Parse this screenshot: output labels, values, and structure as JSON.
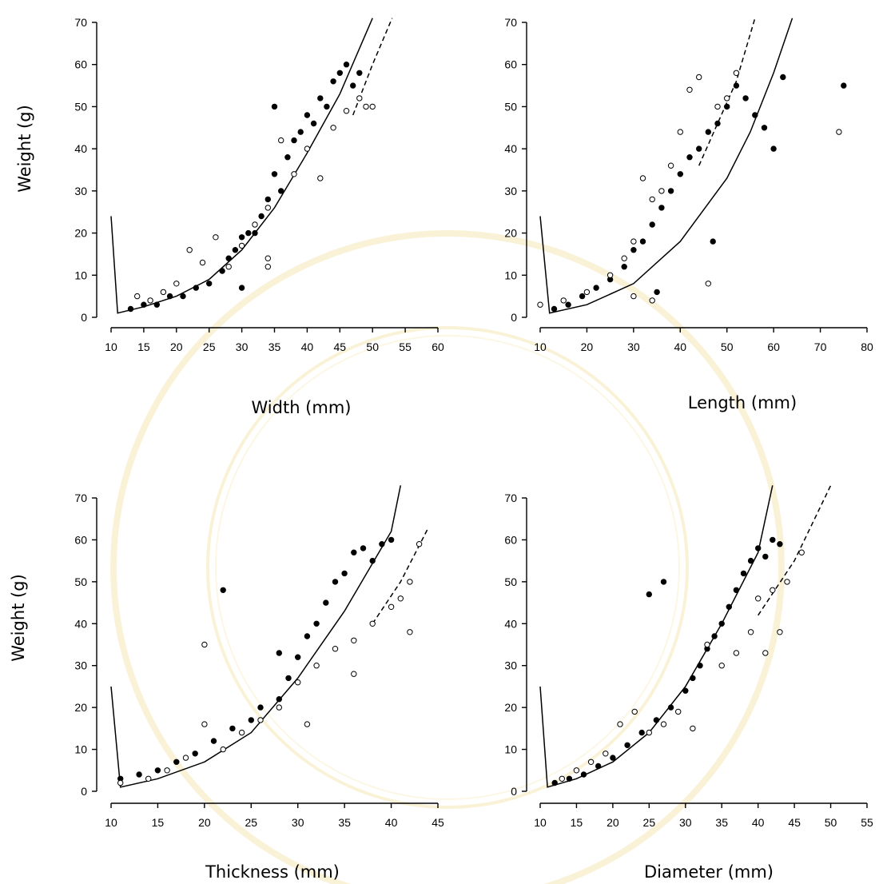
{
  "colors": {
    "axis": "#000000",
    "filled_point": "#000000",
    "open_point_fill": "#ffffff",
    "watermark": "#e9c64b"
  },
  "chart_data": [
    {
      "type": "scatter",
      "xlabel": "Width (mm)",
      "ylabel": "Weight (g)",
      "xlim": [
        10,
        60
      ],
      "ylim": [
        0,
        70
      ],
      "xticks": [
        "10",
        "15",
        "20",
        "25",
        "30",
        "35",
        "40",
        "45",
        "50",
        "55",
        "60"
      ],
      "yticks": [
        "0",
        "10",
        "20",
        "30",
        "40",
        "50",
        "60",
        "70"
      ],
      "series": [
        {
          "marker": "filled",
          "points": [
            [
              13,
              2
            ],
            [
              15,
              3
            ],
            [
              17,
              3
            ],
            [
              19,
              5
            ],
            [
              21,
              5
            ],
            [
              23,
              7
            ],
            [
              25,
              8
            ],
            [
              27,
              11
            ],
            [
              28,
              14
            ],
            [
              29,
              16
            ],
            [
              30,
              19
            ],
            [
              31,
              20
            ],
            [
              32,
              20
            ],
            [
              33,
              24
            ],
            [
              34,
              28
            ],
            [
              35,
              34
            ],
            [
              36,
              30
            ],
            [
              37,
              38
            ],
            [
              38,
              42
            ],
            [
              39,
              44
            ],
            [
              40,
              48
            ],
            [
              41,
              46
            ],
            [
              42,
              52
            ],
            [
              43,
              50
            ],
            [
              44,
              56
            ],
            [
              45,
              58
            ],
            [
              46,
              60
            ],
            [
              47,
              55
            ],
            [
              48,
              58
            ],
            [
              35,
              50
            ],
            [
              30,
              7
            ]
          ]
        },
        {
          "marker": "open",
          "points": [
            [
              14,
              5
            ],
            [
              16,
              4
            ],
            [
              18,
              6
            ],
            [
              20,
              8
            ],
            [
              22,
              16
            ],
            [
              24,
              13
            ],
            [
              26,
              19
            ],
            [
              28,
              12
            ],
            [
              30,
              17
            ],
            [
              32,
              22
            ],
            [
              34,
              26
            ],
            [
              36,
              42
            ],
            [
              38,
              34
            ],
            [
              40,
              40
            ],
            [
              42,
              33
            ],
            [
              44,
              45
            ],
            [
              46,
              49
            ],
            [
              48,
              52
            ],
            [
              49,
              50
            ],
            [
              50,
              50
            ],
            [
              34,
              14
            ],
            [
              34,
              12
            ]
          ]
        }
      ],
      "fit_lines": [
        {
          "style": "solid",
          "points": [
            [
              10,
              24
            ],
            [
              11,
              1
            ],
            [
              15,
              2.5
            ],
            [
              20,
              5
            ],
            [
              25,
              9
            ],
            [
              30,
              16
            ],
            [
              35,
              26
            ],
            [
              40,
              39
            ],
            [
              45,
              53
            ],
            [
              50,
              71
            ]
          ]
        },
        {
          "style": "dashed",
          "points": [
            [
              47,
              48
            ],
            [
              50,
              60
            ],
            [
              53,
              71
            ]
          ]
        }
      ]
    },
    {
      "type": "scatter",
      "xlabel": "Length (mm)",
      "ylabel": "",
      "xlim": [
        10,
        80
      ],
      "ylim": [
        0,
        70
      ],
      "xticks": [
        "10",
        "20",
        "30",
        "40",
        "50",
        "60",
        "70",
        "80"
      ],
      "yticks": [
        "0",
        "10",
        "20",
        "30",
        "40",
        "50",
        "60",
        "70"
      ],
      "series": [
        {
          "marker": "filled",
          "points": [
            [
              13,
              2
            ],
            [
              16,
              3
            ],
            [
              19,
              5
            ],
            [
              22,
              7
            ],
            [
              25,
              9
            ],
            [
              28,
              12
            ],
            [
              30,
              16
            ],
            [
              32,
              18
            ],
            [
              34,
              22
            ],
            [
              36,
              26
            ],
            [
              38,
              30
            ],
            [
              40,
              34
            ],
            [
              42,
              38
            ],
            [
              44,
              40
            ],
            [
              46,
              44
            ],
            [
              48,
              46
            ],
            [
              50,
              50
            ],
            [
              52,
              55
            ],
            [
              54,
              52
            ],
            [
              56,
              48
            ],
            [
              58,
              45
            ],
            [
              60,
              40
            ],
            [
              62,
              57
            ],
            [
              47,
              18
            ],
            [
              35,
              6
            ],
            [
              75,
              55
            ]
          ]
        },
        {
          "marker": "open",
          "points": [
            [
              10,
              3
            ],
            [
              15,
              4
            ],
            [
              20,
              6
            ],
            [
              25,
              10
            ],
            [
              28,
              14
            ],
            [
              30,
              18
            ],
            [
              32,
              33
            ],
            [
              34,
              28
            ],
            [
              36,
              30
            ],
            [
              38,
              36
            ],
            [
              40,
              44
            ],
            [
              42,
              54
            ],
            [
              44,
              57
            ],
            [
              46,
              8
            ],
            [
              48,
              50
            ],
            [
              50,
              52
            ],
            [
              52,
              58
            ],
            [
              34,
              4
            ],
            [
              74,
              44
            ],
            [
              30,
              5
            ]
          ]
        }
      ],
      "fit_lines": [
        {
          "style": "solid",
          "points": [
            [
              10,
              24
            ],
            [
              12,
              1
            ],
            [
              20,
              3
            ],
            [
              30,
              8
            ],
            [
              40,
              18
            ],
            [
              50,
              33
            ],
            [
              55,
              44
            ],
            [
              60,
              58
            ],
            [
              64,
              71
            ]
          ]
        },
        {
          "style": "dashed",
          "points": [
            [
              44,
              36
            ],
            [
              48,
              46
            ],
            [
              52,
              56
            ],
            [
              56,
              71
            ]
          ]
        }
      ]
    },
    {
      "type": "scatter",
      "xlabel": "Thickness (mm)",
      "ylabel": "Weight (g)",
      "xlim": [
        10,
        45
      ],
      "ylim": [
        0,
        70
      ],
      "xticks": [
        "10",
        "15",
        "20",
        "25",
        "30",
        "35",
        "40",
        "45"
      ],
      "yticks": [
        "0",
        "10",
        "20",
        "30",
        "40",
        "50",
        "60",
        "70"
      ],
      "series": [
        {
          "marker": "filled",
          "points": [
            [
              11,
              3
            ],
            [
              13,
              4
            ],
            [
              15,
              5
            ],
            [
              17,
              7
            ],
            [
              19,
              9
            ],
            [
              21,
              12
            ],
            [
              23,
              15
            ],
            [
              25,
              17
            ],
            [
              26,
              20
            ],
            [
              28,
              22
            ],
            [
              29,
              27
            ],
            [
              30,
              32
            ],
            [
              31,
              37
            ],
            [
              32,
              40
            ],
            [
              33,
              45
            ],
            [
              34,
              50
            ],
            [
              35,
              52
            ],
            [
              36,
              57
            ],
            [
              37,
              58
            ],
            [
              38,
              55
            ],
            [
              39,
              59
            ],
            [
              40,
              60
            ],
            [
              22,
              48
            ],
            [
              28,
              33
            ]
          ]
        },
        {
          "marker": "open",
          "points": [
            [
              11,
              2
            ],
            [
              14,
              3
            ],
            [
              16,
              5
            ],
            [
              18,
              8
            ],
            [
              20,
              16
            ],
            [
              20,
              35
            ],
            [
              22,
              10
            ],
            [
              24,
              14
            ],
            [
              26,
              17
            ],
            [
              28,
              20
            ],
            [
              30,
              26
            ],
            [
              32,
              30
            ],
            [
              34,
              34
            ],
            [
              36,
              36
            ],
            [
              38,
              40
            ],
            [
              40,
              44
            ],
            [
              41,
              46
            ],
            [
              42,
              50
            ],
            [
              43,
              59
            ],
            [
              42,
              38
            ],
            [
              36,
              28
            ],
            [
              31,
              16
            ]
          ]
        }
      ],
      "fit_lines": [
        {
          "style": "solid",
          "points": [
            [
              10,
              25
            ],
            [
              11,
              1
            ],
            [
              15,
              3
            ],
            [
              20,
              7
            ],
            [
              25,
              14
            ],
            [
              30,
              27
            ],
            [
              35,
              43
            ],
            [
              40,
              62
            ],
            [
              41,
              73
            ]
          ]
        },
        {
          "style": "dashed",
          "points": [
            [
              38,
              40
            ],
            [
              41,
              50
            ],
            [
              44,
              63
            ]
          ]
        }
      ]
    },
    {
      "type": "scatter",
      "xlabel": "Diameter (mm)",
      "ylabel": "",
      "xlim": [
        10,
        55
      ],
      "ylim": [
        0,
        70
      ],
      "xticks": [
        "10",
        "15",
        "20",
        "25",
        "30",
        "35",
        "40",
        "45",
        "50",
        "55"
      ],
      "yticks": [
        "0",
        "10",
        "20",
        "30",
        "40",
        "50",
        "60",
        "70"
      ],
      "series": [
        {
          "marker": "filled",
          "points": [
            [
              12,
              2
            ],
            [
              14,
              3
            ],
            [
              16,
              4
            ],
            [
              18,
              6
            ],
            [
              20,
              8
            ],
            [
              22,
              11
            ],
            [
              24,
              14
            ],
            [
              26,
              17
            ],
            [
              28,
              20
            ],
            [
              30,
              24
            ],
            [
              31,
              27
            ],
            [
              32,
              30
            ],
            [
              33,
              34
            ],
            [
              34,
              37
            ],
            [
              35,
              40
            ],
            [
              36,
              44
            ],
            [
              37,
              48
            ],
            [
              38,
              52
            ],
            [
              39,
              55
            ],
            [
              40,
              58
            ],
            [
              41,
              56
            ],
            [
              42,
              60
            ],
            [
              43,
              59
            ],
            [
              27,
              50
            ],
            [
              25,
              47
            ]
          ]
        },
        {
          "marker": "open",
          "points": [
            [
              13,
              3
            ],
            [
              15,
              5
            ],
            [
              17,
              7
            ],
            [
              19,
              9
            ],
            [
              21,
              16
            ],
            [
              23,
              19
            ],
            [
              25,
              14
            ],
            [
              27,
              16
            ],
            [
              29,
              19
            ],
            [
              31,
              15
            ],
            [
              33,
              35
            ],
            [
              35,
              30
            ],
            [
              37,
              33
            ],
            [
              39,
              38
            ],
            [
              41,
              33
            ],
            [
              42,
              48
            ],
            [
              43,
              38
            ],
            [
              44,
              50
            ],
            [
              46,
              57
            ],
            [
              40,
              46
            ]
          ]
        }
      ],
      "fit_lines": [
        {
          "style": "solid",
          "points": [
            [
              10,
              25
            ],
            [
              11,
              1
            ],
            [
              15,
              3
            ],
            [
              20,
              7
            ],
            [
              25,
              14
            ],
            [
              30,
              25
            ],
            [
              35,
              40
            ],
            [
              40,
              57
            ],
            [
              42,
              73
            ]
          ]
        },
        {
          "style": "dashed",
          "points": [
            [
              40,
              42
            ],
            [
              45,
              55
            ],
            [
              50,
              73
            ]
          ]
        }
      ]
    }
  ]
}
